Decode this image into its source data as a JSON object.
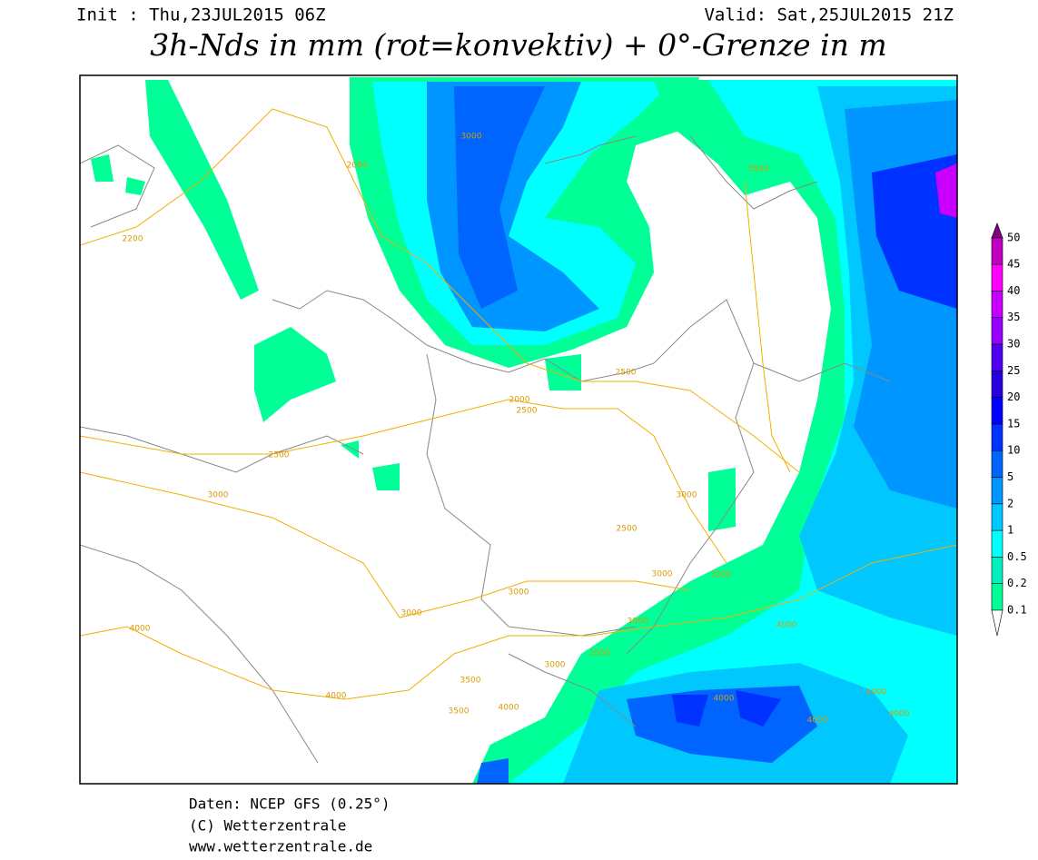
{
  "header": {
    "init": "Init : Thu,23JUL2015 06Z",
    "valid": "Valid: Sat,25JUL2015 21Z",
    "title": "3h-Nds in mm (rot=konvektiv) + 0°-Grenze in m"
  },
  "legend": {
    "labels": [
      "0.1",
      "0.2",
      "0.5",
      "1",
      "2",
      "5",
      "10",
      "15",
      "20",
      "25",
      "30",
      "35",
      "40",
      "45",
      "50"
    ],
    "colors": [
      "#00ff96",
      "#00f0c0",
      "#00ffff",
      "#00c8ff",
      "#0096ff",
      "#0064ff",
      "#0032ff",
      "#0000ff",
      "#2800dc",
      "#5000f0",
      "#9600ff",
      "#c800ff",
      "#ff00ff",
      "#c000c0",
      "#800080"
    ]
  },
  "contour_labels": [
    "2000",
    "2200",
    "2500",
    "3000",
    "3500",
    "3000",
    "2000",
    "2500",
    "2500",
    "3000",
    "3000",
    "2500",
    "3000",
    "3000",
    "3500",
    "4000",
    "4000",
    "3000",
    "3500",
    "4000",
    "3500",
    "4000",
    "4000",
    "4000",
    "4000",
    "4000",
    "3500",
    "3000"
  ],
  "footer": {
    "source": "Daten: NCEP GFS (0.25°)",
    "copyright": "(C) Wetterzentrale",
    "url": "www.wetterzentrale.de"
  }
}
